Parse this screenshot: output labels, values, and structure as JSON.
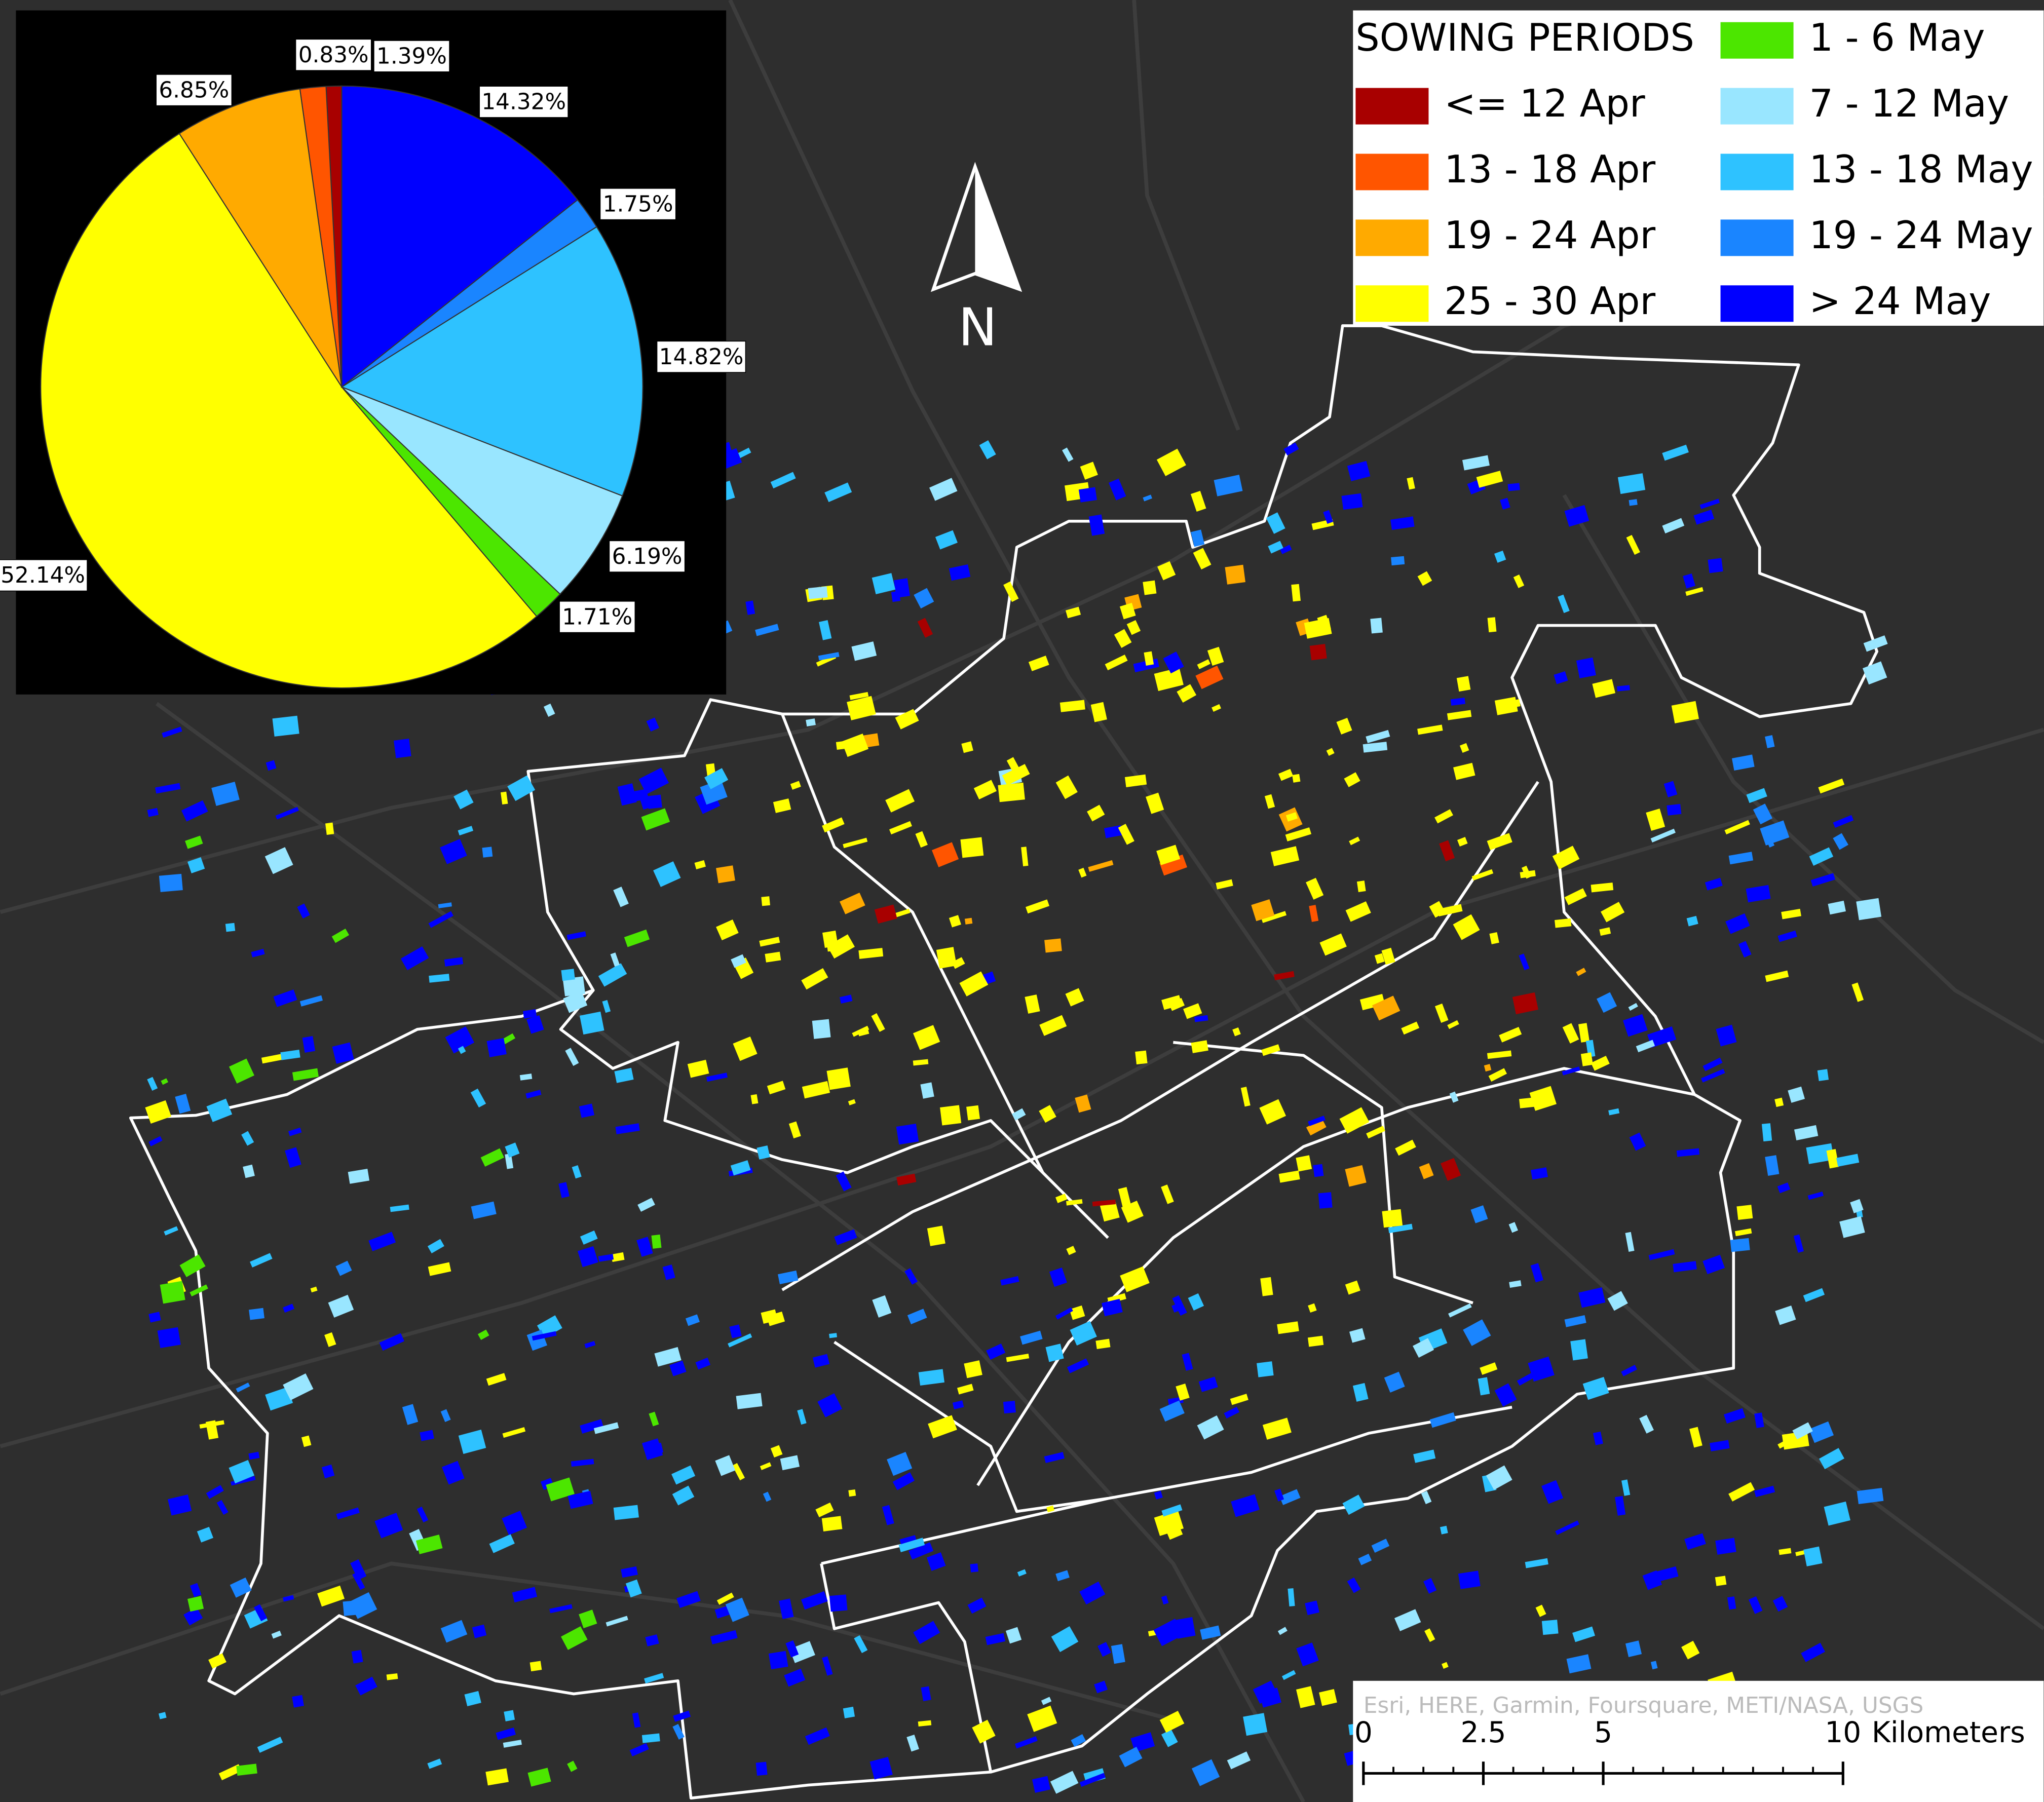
{
  "chart_data": {
    "type": "pie",
    "legend_title": "SOWING PERIODS",
    "categories": [
      "<= 12 Apr",
      "13 - 18 Apr",
      "19 - 24 Apr",
      "25 - 30 Apr",
      "1 - 6 May",
      "7 - 12 May",
      "13 - 18 May",
      "19 - 24 May",
      "> 24 May"
    ],
    "values": [
      0.83,
      1.39,
      6.85,
      52.14,
      1.71,
      6.19,
      14.82,
      1.75,
      14.32
    ],
    "value_labels": [
      "0.83%",
      "1.39%",
      "6.85%",
      "52.14%",
      "1.71%",
      "6.19%",
      "14.82%",
      "1.75%",
      "14.32%"
    ],
    "colors": [
      "#a80000",
      "#ff5500",
      "#ffaa00",
      "#ffff00",
      "#4ce600",
      "#99e6ff",
      "#2ec2ff",
      "#1a85ff",
      "#0000ff"
    ]
  },
  "map": {
    "north_label": "N",
    "scale_bar": {
      "ticks": [
        0,
        2.5,
        5,
        10
      ],
      "unit": "Kilometers"
    },
    "attribution": "Esri, HERE, Garmin, Foursquare, METI/NASA, USGS"
  }
}
